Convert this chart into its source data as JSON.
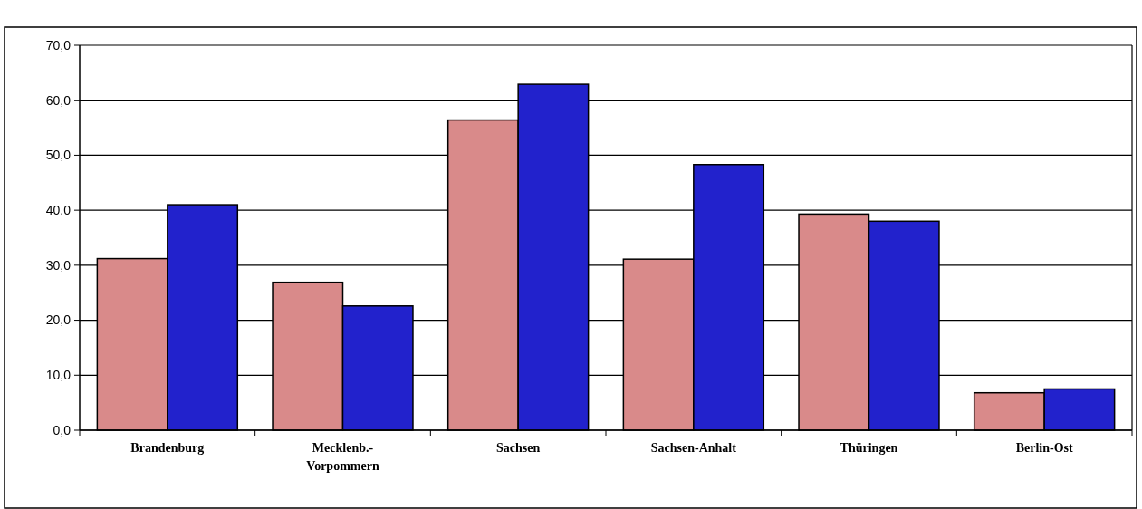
{
  "chart_data": {
    "type": "bar",
    "categories": [
      "Brandenburg",
      "Mecklenb.- Vorpommern",
      "Sachsen",
      "Sachsen-Anhalt",
      "Thüringen",
      "Berlin-Ost"
    ],
    "series": [
      {
        "color": "#d98a8a",
        "values": [
          31.2,
          26.9,
          56.4,
          31.1,
          39.3,
          6.8
        ]
      },
      {
        "color": "#2222cc",
        "values": [
          41.0,
          22.6,
          62.9,
          48.3,
          38.0,
          7.5
        ]
      }
    ],
    "ylim": [
      0,
      70
    ],
    "yticks": [
      {
        "value": 0,
        "label": "0,0"
      },
      {
        "value": 10,
        "label": "10,0"
      },
      {
        "value": 20,
        "label": "20,0"
      },
      {
        "value": 30,
        "label": "30,0"
      },
      {
        "value": 40,
        "label": "40,0"
      },
      {
        "value": 50,
        "label": "50,0"
      },
      {
        "value": 60,
        "label": "60,0"
      },
      {
        "value": 70,
        "label": "70,0"
      }
    ],
    "grid": "y"
  }
}
